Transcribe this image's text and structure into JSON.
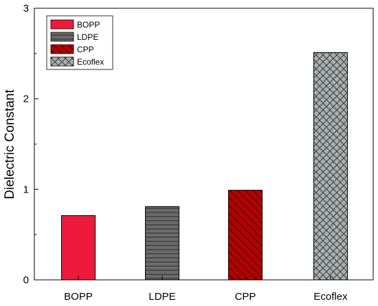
{
  "chart_data": {
    "type": "bar",
    "categories": [
      "BOPP",
      "LDPE",
      "CPP",
      "Ecoflex"
    ],
    "values": [
      0.71,
      0.81,
      0.99,
      2.51
    ],
    "xlabel": "",
    "ylabel": "Dielectric Constant",
    "ylim": [
      0,
      3
    ],
    "yticks": [
      "0",
      "1",
      "2",
      "3"
    ],
    "grid": false,
    "legend": {
      "placement": "top-left",
      "entries": [
        "BOPP",
        "LDPE",
        "CPP",
        "Ecoflex"
      ]
    },
    "bar_styles": [
      {
        "fill": "#ee1a3c",
        "pattern": "solid"
      },
      {
        "fill": "#6b6b6b",
        "pattern": "horizontal-lines"
      },
      {
        "fill": "#b30000",
        "pattern": "diagonal-lines"
      },
      {
        "fill": "#a9b0b0",
        "pattern": "crosshatch"
      }
    ]
  }
}
